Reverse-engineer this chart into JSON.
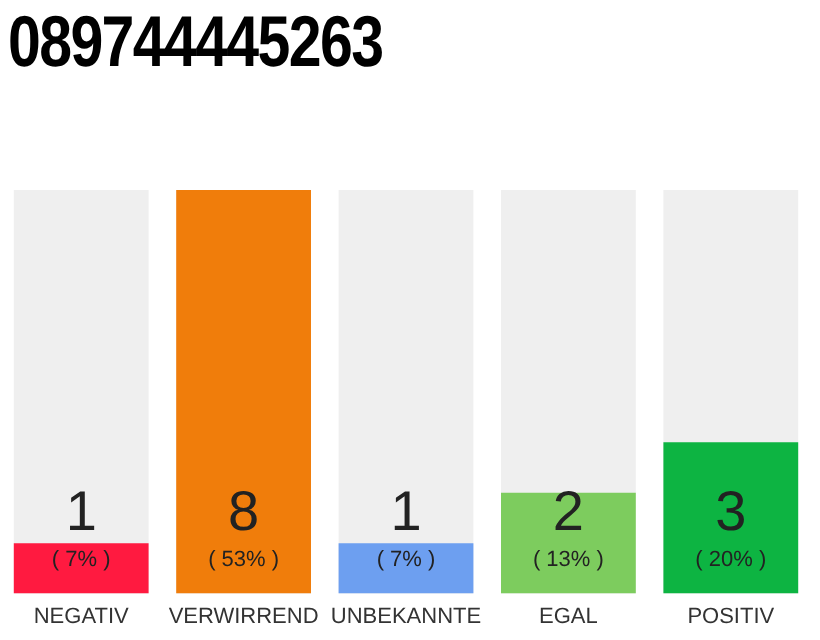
{
  "chart_data": {
    "type": "bar",
    "title": "089744445263",
    "categories": [
      "NEGATIV",
      "VERWIRREND",
      "UNBEKANNTE",
      "EGAL",
      "POSITIV"
    ],
    "values": [
      1,
      8,
      1,
      2,
      3
    ],
    "colors": [
      "#ff1a40",
      "#f07d0b",
      "#6d9ff0",
      "#7dcc5e",
      "#0db442"
    ],
    "data_labels": true,
    "annotations": [
      "( 7% )",
      "( 53% )",
      "( 7% )",
      "( 13% )",
      "( 20% )"
    ],
    "grid": false,
    "legend": false
  }
}
